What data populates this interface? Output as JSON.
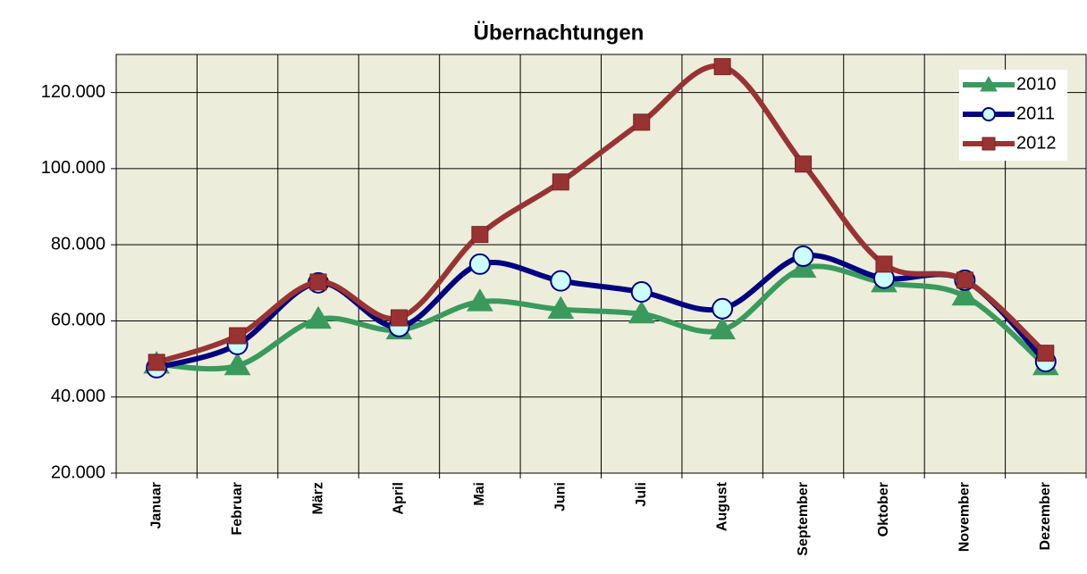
{
  "chart_data": {
    "type": "line",
    "title": "Übernachtungen",
    "categories": [
      "Januar",
      "Februar",
      "März",
      "April",
      "Mai",
      "Juni",
      "Juli",
      "August",
      "September",
      "Oktober",
      "November",
      "Dezember"
    ],
    "series": [
      {
        "name": "2010",
        "color": "#3a9a5e",
        "marker": "triangle",
        "values": [
          48600,
          48200,
          60400,
          57600,
          65000,
          63000,
          61800,
          57600,
          73800,
          70000,
          66500,
          48200
        ]
      },
      {
        "name": "2011",
        "color": "#000080",
        "marker": "circle",
        "values": [
          47700,
          53800,
          70000,
          58500,
          74900,
          70500,
          67600,
          63200,
          77000,
          71200,
          70700,
          49300
        ]
      },
      {
        "name": "2012",
        "color": "#993333",
        "marker": "square",
        "values": [
          49100,
          56100,
          70200,
          60800,
          82700,
          96500,
          112200,
          126800,
          101200,
          74900,
          70700,
          51500
        ]
      }
    ],
    "ylim": [
      20000,
      130000
    ],
    "yticks": [
      {
        "value": 20000,
        "label": "20.000"
      },
      {
        "value": 40000,
        "label": "40.000"
      },
      {
        "value": 60000,
        "label": "60.000"
      },
      {
        "value": 80000,
        "label": "80.000"
      },
      {
        "value": 100000,
        "label": "100.000"
      },
      {
        "value": 120000,
        "label": "120.000"
      }
    ],
    "grid": true,
    "legend": "top-right"
  }
}
